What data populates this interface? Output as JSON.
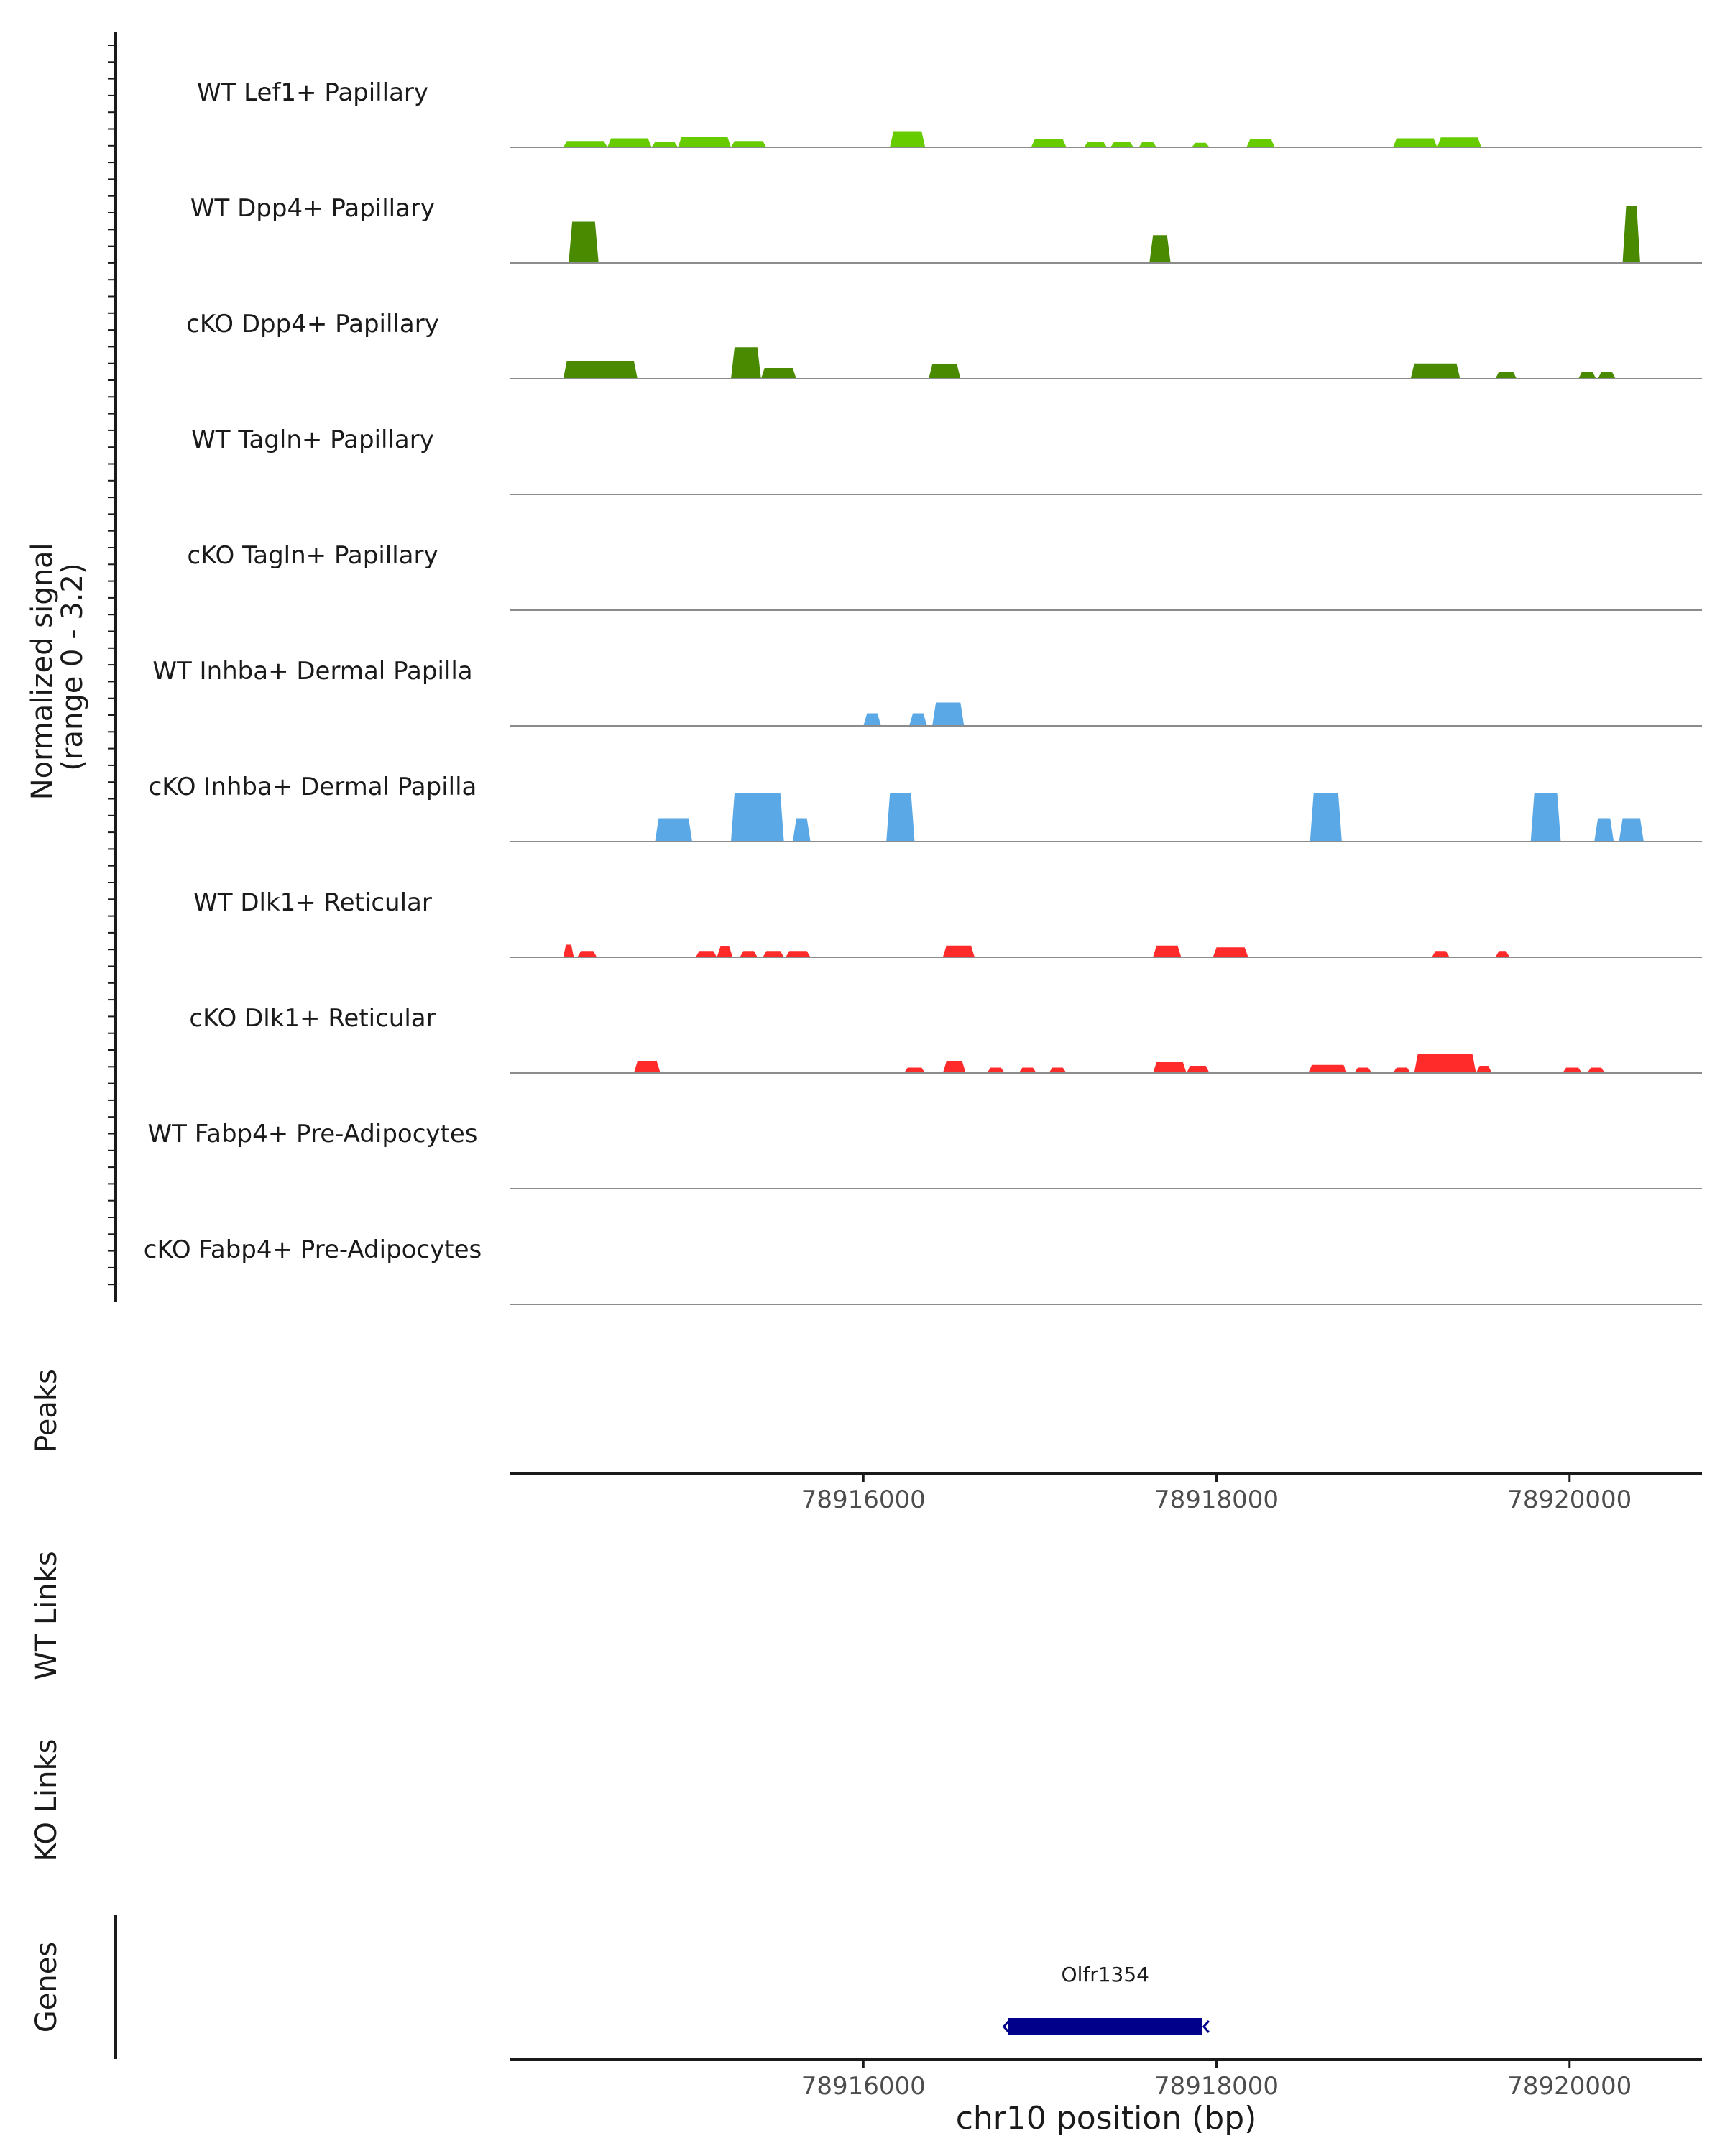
{
  "chart_data": {
    "type": "area",
    "title": "",
    "chromosome": "chr10",
    "xlabel": "chr10 position (bp)",
    "xlim": [
      78914000,
      78920750
    ],
    "x_ticks": [
      78916000,
      78918000,
      78920000
    ],
    "x_tick_labels": [
      "78916000",
      "78918000",
      "78920000"
    ],
    "signal_ylabel_line1": "Normalized signal",
    "signal_ylabel_line2": "(range 0 - 3.2)",
    "signal_ylim": [
      0,
      3.2
    ],
    "panel_labels": {
      "peaks": "Peaks",
      "wt_links": "WT Links",
      "ko_links": "KO Links",
      "genes": "Genes"
    },
    "colors": {
      "lef1": "#66cc00",
      "dpp4": "#4a8a00",
      "inhba": "#5aa9e6",
      "dlk1": "#ff2a2a",
      "gene": "#00008b",
      "baseline": "#8c8c8c"
    },
    "tracks": [
      {
        "name": "WT Lef1+ Papillary",
        "color": "#66cc00",
        "regions": [
          {
            "start": 78914300,
            "end": 78914550,
            "height": 0.35
          },
          {
            "start": 78914550,
            "end": 78914800,
            "height": 0.5
          },
          {
            "start": 78914800,
            "end": 78914950,
            "height": 0.3
          },
          {
            "start": 78914950,
            "end": 78915250,
            "height": 0.6
          },
          {
            "start": 78915250,
            "end": 78915450,
            "height": 0.35
          },
          {
            "start": 78916150,
            "end": 78916350,
            "height": 0.9
          },
          {
            "start": 78916950,
            "end": 78917150,
            "height": 0.45
          },
          {
            "start": 78917250,
            "end": 78917380,
            "height": 0.3
          },
          {
            "start": 78917400,
            "end": 78917530,
            "height": 0.3
          },
          {
            "start": 78917560,
            "end": 78917660,
            "height": 0.3
          },
          {
            "start": 78917860,
            "end": 78917960,
            "height": 0.25
          },
          {
            "start": 78918170,
            "end": 78918330,
            "height": 0.45
          },
          {
            "start": 78919000,
            "end": 78919250,
            "height": 0.5
          },
          {
            "start": 78919250,
            "end": 78919500,
            "height": 0.55
          }
        ]
      },
      {
        "name": "WT Dpp4+ Papillary",
        "color": "#4a8a00",
        "regions": [
          {
            "start": 78914330,
            "end": 78914500,
            "height": 2.3
          },
          {
            "start": 78917620,
            "end": 78917740,
            "height": 1.55
          },
          {
            "start": 78920300,
            "end": 78920400,
            "height": 3.2
          }
        ]
      },
      {
        "name": "cKO Dpp4+ Papillary",
        "color": "#4a8a00",
        "regions": [
          {
            "start": 78914300,
            "end": 78914720,
            "height": 1.0
          },
          {
            "start": 78915250,
            "end": 78915420,
            "height": 1.75
          },
          {
            "start": 78915420,
            "end": 78915620,
            "height": 0.6
          },
          {
            "start": 78916370,
            "end": 78916550,
            "height": 0.8
          },
          {
            "start": 78919100,
            "end": 78919380,
            "height": 0.85
          },
          {
            "start": 78919580,
            "end": 78919700,
            "height": 0.4
          },
          {
            "start": 78920050,
            "end": 78920150,
            "height": 0.4
          },
          {
            "start": 78920160,
            "end": 78920260,
            "height": 0.4
          }
        ]
      },
      {
        "name": "WT Tagln+ Papillary",
        "color": "#4a8a00",
        "regions": []
      },
      {
        "name": "cKO Tagln+ Papillary",
        "color": "#4a8a00",
        "regions": []
      },
      {
        "name": "WT Inhba+ Dermal Papilla",
        "color": "#5aa9e6",
        "regions": [
          {
            "start": 78916000,
            "end": 78916100,
            "height": 0.7
          },
          {
            "start": 78916260,
            "end": 78916360,
            "height": 0.7
          },
          {
            "start": 78916390,
            "end": 78916570,
            "height": 1.3
          }
        ]
      },
      {
        "name": "cKO Inhba+ Dermal Papilla",
        "color": "#5aa9e6",
        "regions": [
          {
            "start": 78914820,
            "end": 78915030,
            "height": 1.3
          },
          {
            "start": 78915250,
            "end": 78915550,
            "height": 2.7
          },
          {
            "start": 78915600,
            "end": 78915700,
            "height": 1.3
          },
          {
            "start": 78916130,
            "end": 78916290,
            "height": 2.7
          },
          {
            "start": 78918530,
            "end": 78918710,
            "height": 2.7
          },
          {
            "start": 78919780,
            "end": 78919950,
            "height": 2.7
          },
          {
            "start": 78920140,
            "end": 78920250,
            "height": 1.3
          },
          {
            "start": 78920280,
            "end": 78920420,
            "height": 1.3
          }
        ]
      },
      {
        "name": "WT Dlk1+ Reticular",
        "color": "#ff2a2a",
        "regions": [
          {
            "start": 78914300,
            "end": 78914360,
            "height": 0.7
          },
          {
            "start": 78914380,
            "end": 78914490,
            "height": 0.35
          },
          {
            "start": 78915050,
            "end": 78915170,
            "height": 0.35
          },
          {
            "start": 78915170,
            "end": 78915260,
            "height": 0.6
          },
          {
            "start": 78915300,
            "end": 78915400,
            "height": 0.35
          },
          {
            "start": 78915430,
            "end": 78915550,
            "height": 0.35
          },
          {
            "start": 78915560,
            "end": 78915700,
            "height": 0.35
          },
          {
            "start": 78916450,
            "end": 78916630,
            "height": 0.65
          },
          {
            "start": 78917640,
            "end": 78917800,
            "height": 0.65
          },
          {
            "start": 78917980,
            "end": 78918180,
            "height": 0.55
          },
          {
            "start": 78919220,
            "end": 78919320,
            "height": 0.35
          },
          {
            "start": 78919580,
            "end": 78919660,
            "height": 0.35
          }
        ]
      },
      {
        "name": "cKO Dlk1+ Reticular",
        "color": "#ff2a2a",
        "regions": [
          {
            "start": 78914700,
            "end": 78914850,
            "height": 0.65
          },
          {
            "start": 78916230,
            "end": 78916350,
            "height": 0.3
          },
          {
            "start": 78916450,
            "end": 78916580,
            "height": 0.65
          },
          {
            "start": 78916700,
            "end": 78916800,
            "height": 0.3
          },
          {
            "start": 78916880,
            "end": 78916980,
            "height": 0.3
          },
          {
            "start": 78917050,
            "end": 78917150,
            "height": 0.3
          },
          {
            "start": 78917640,
            "end": 78917830,
            "height": 0.6
          },
          {
            "start": 78917830,
            "end": 78917960,
            "height": 0.4
          },
          {
            "start": 78918520,
            "end": 78918740,
            "height": 0.45
          },
          {
            "start": 78918780,
            "end": 78918880,
            "height": 0.3
          },
          {
            "start": 78919000,
            "end": 78919100,
            "height": 0.3
          },
          {
            "start": 78919120,
            "end": 78919470,
            "height": 1.05
          },
          {
            "start": 78919470,
            "end": 78919560,
            "height": 0.4
          },
          {
            "start": 78919960,
            "end": 78920070,
            "height": 0.3
          },
          {
            "start": 78920100,
            "end": 78920200,
            "height": 0.3
          }
        ]
      },
      {
        "name": "WT Fabp4+ Pre-Adipocytes",
        "color": "#5aa9e6",
        "regions": []
      },
      {
        "name": "cKO Fabp4+ Pre-Adipocytes",
        "color": "#5aa9e6",
        "regions": []
      }
    ],
    "genes": [
      {
        "name": "Olfr1354",
        "start": 78916820,
        "end": 78917920,
        "strand": "-"
      }
    ]
  }
}
